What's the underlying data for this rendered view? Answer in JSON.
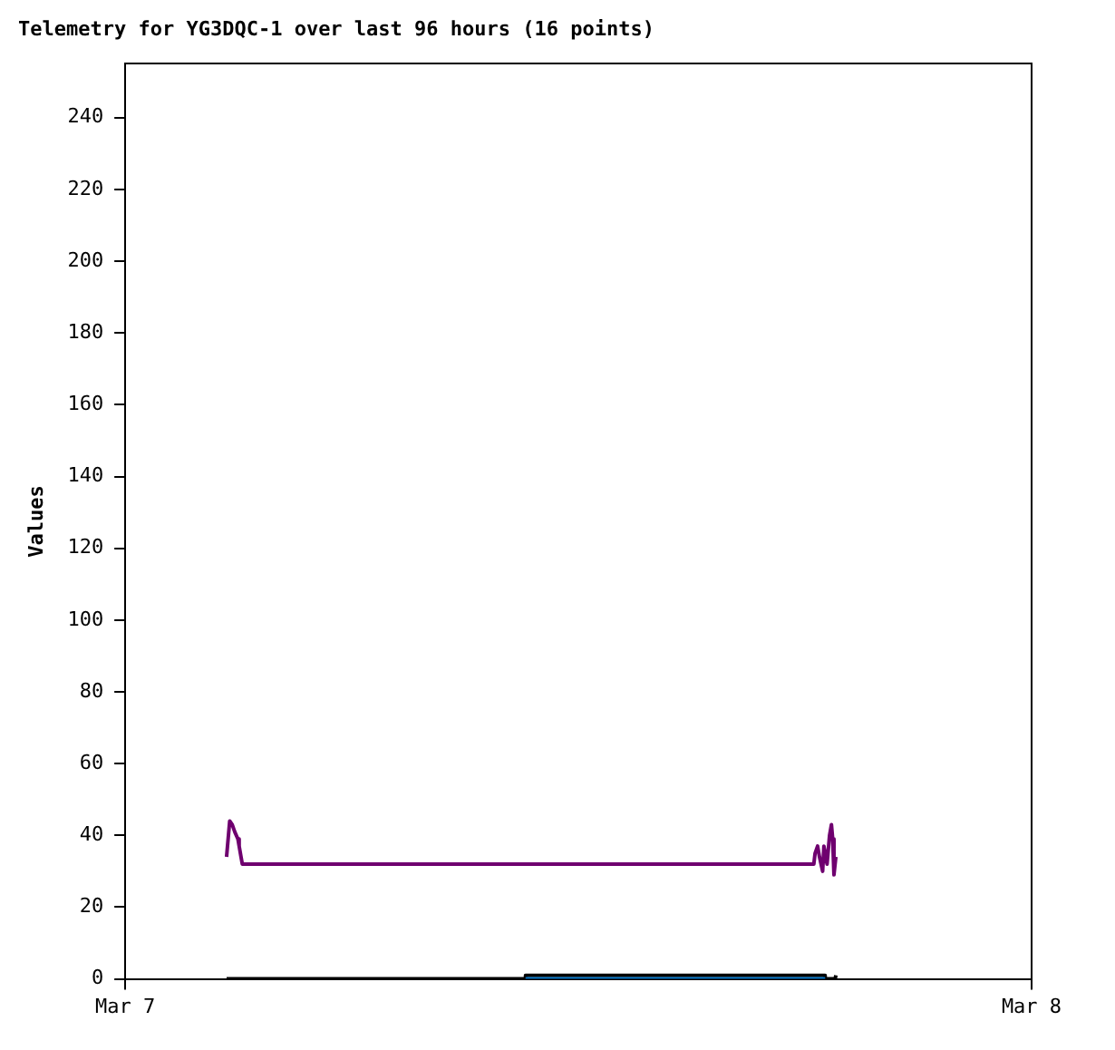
{
  "chart_data": {
    "type": "line",
    "title": "Telemetry for YG3DQC-1 over last 96 hours (16 points)",
    "ylabel": "Values",
    "xlim": [
      "--03-07",
      "--03-08"
    ],
    "xticks": [
      {
        "value": "--03-07",
        "label": "Mar 7"
      },
      {
        "value": "--03-08",
        "label": "Mar 8"
      }
    ],
    "ylim": [
      0,
      255
    ],
    "yticks": [
      0,
      20,
      40,
      60,
      80,
      100,
      120,
      140,
      160,
      180,
      200,
      220,
      240
    ],
    "grid": false,
    "legend": false,
    "marker": "none",
    "line_style": "solid",
    "series": [
      {
        "color": "#0070c0",
        "x": [
          "--03-07T10:36",
          "--03-07T18:32"
        ],
        "values": [
          0,
          0
        ]
      },
      {
        "color": "#000000",
        "x": [
          "--03-07T02:41",
          "--03-07T10:36",
          "--03-07T10:36",
          "--03-07T18:32",
          "--03-07T18:32",
          "--03-07T18:48",
          "--03-07T18:49"
        ],
        "values": [
          0,
          0,
          1,
          1,
          0,
          0,
          1
        ]
      },
      {
        "color": "#6f006f",
        "x": [
          "--03-07T02:41",
          "--03-07T02:46",
          "--03-07T02:50",
          "--03-07T02:54",
          "--03-07T02:59",
          "--03-07T03:01",
          "--03-07T03:04",
          "--03-07T03:06",
          "--03-07T18:14",
          "--03-07T18:16",
          "--03-07T18:20",
          "--03-07T18:23",
          "--03-07T18:28",
          "--03-07T18:30",
          "--03-07T18:35",
          "--03-07T18:39",
          "--03-07T18:42",
          "--03-07T18:44",
          "--03-07T18:46",
          "--03-07T18:49"
        ],
        "values": [
          34,
          44,
          43,
          41,
          39,
          37,
          34,
          32,
          32,
          35,
          37,
          34,
          30,
          37,
          32,
          40,
          43,
          39,
          29,
          34
        ]
      }
    ]
  }
}
